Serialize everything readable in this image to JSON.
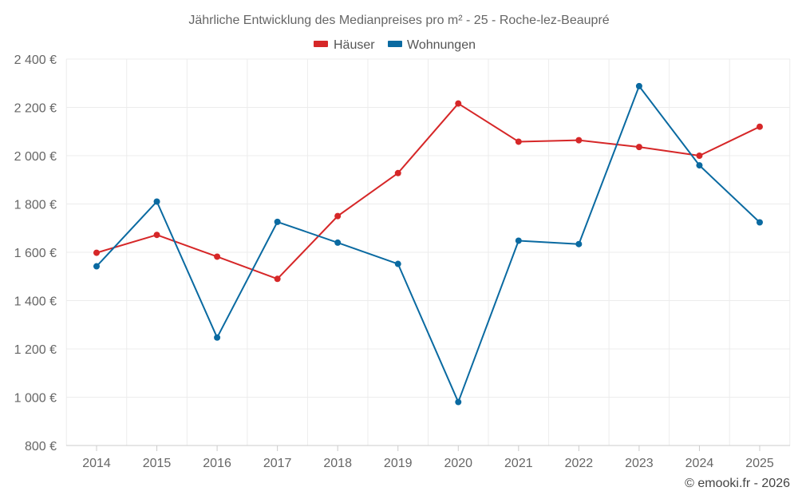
{
  "chart_data": {
    "type": "line",
    "title": "Jährliche Entwicklung des Medianpreises pro m² - 25 - Roche-lez-Beaupré",
    "categories": [
      "2014",
      "2015",
      "2016",
      "2017",
      "2018",
      "2019",
      "2020",
      "2021",
      "2022",
      "2023",
      "2024",
      "2025"
    ],
    "series": [
      {
        "name": "Häuser",
        "color": "#d62728",
        "values": [
          1598,
          1672,
          1582,
          1490,
          1750,
          1928,
          2216,
          2058,
          2064,
          2036,
          2000,
          2120
        ]
      },
      {
        "name": "Wohnungen",
        "color": "#0a6aa1",
        "values": [
          1542,
          1810,
          1247,
          1726,
          1640,
          1552,
          980,
          1648,
          1634,
          2288,
          1960,
          1724
        ]
      }
    ],
    "ylim": [
      800,
      2400
    ],
    "yticks": [
      800,
      1000,
      1200,
      1400,
      1600,
      1800,
      2000,
      2200,
      2400
    ],
    "ytick_labels": [
      "800 €",
      "1 000 €",
      "1 200 €",
      "1 400 €",
      "1 600 €",
      "1 800 €",
      "2 000 €",
      "2 200 €",
      "2 400 €"
    ],
    "xlabel": "",
    "ylabel": "",
    "grid": true,
    "legend_position": "top-center"
  },
  "footer": {
    "copyright": "© emooki.fr - 2026"
  }
}
